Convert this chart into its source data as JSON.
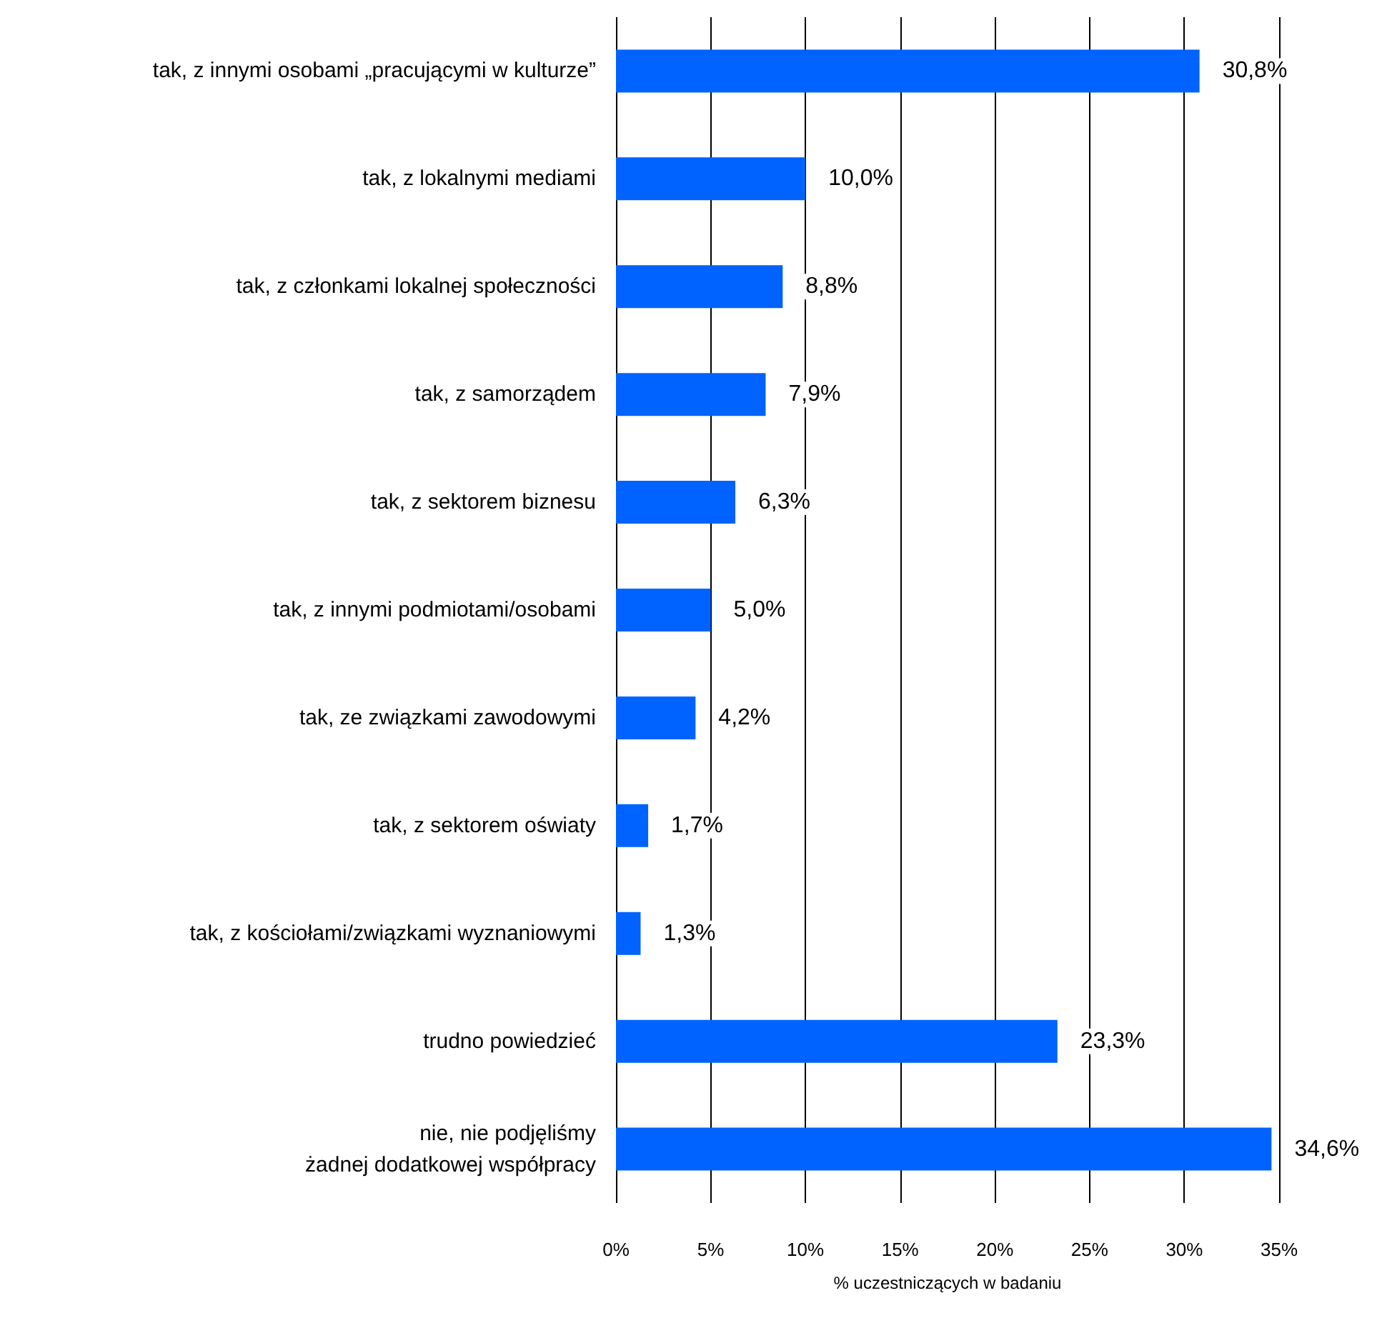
{
  "chart_data": {
    "type": "bar",
    "orientation": "horizontal",
    "xlabel": "% uczestniczących w badaniu",
    "categories": [
      "tak, z innymi osobami „pracującymi w kulturze”",
      "tak, z lokalnymi mediami",
      "tak, z członkami lokalnej społeczności",
      "tak, z samorządem",
      "tak, z sektorem biznesu",
      "tak, z innymi podmiotami/osobami",
      "tak, ze związkami zawodowymi",
      "tak, z sektorem oświaty",
      "tak, z kościołami/związkami wyznaniowymi",
      "trudno powiedzieć",
      "nie, nie podjęliśmy\nżadnej dodatkowej współpracy"
    ],
    "values": [
      30.8,
      10.0,
      8.8,
      7.9,
      6.3,
      5.0,
      4.2,
      1.7,
      1.3,
      23.3,
      34.6
    ],
    "value_labels": [
      "30,8%",
      "10,0%",
      "8,8%",
      "7,9%",
      "6,3%",
      "5,0%",
      "4,2%",
      "1,7%",
      "1,3%",
      "23,3%",
      "34,6%"
    ],
    "color": "#0062ff",
    "xlim": [
      0,
      35
    ],
    "xticks": [
      {
        "value": 0,
        "label": "0%"
      },
      {
        "value": 5,
        "label": "5%"
      },
      {
        "value": 10,
        "label": "10%"
      },
      {
        "value": 15,
        "label": "15%"
      },
      {
        "value": 20,
        "label": "20%"
      },
      {
        "value": 25,
        "label": "25%"
      },
      {
        "value": 30,
        "label": "30%"
      },
      {
        "value": 35,
        "label": "35%"
      }
    ],
    "grid": "x"
  }
}
